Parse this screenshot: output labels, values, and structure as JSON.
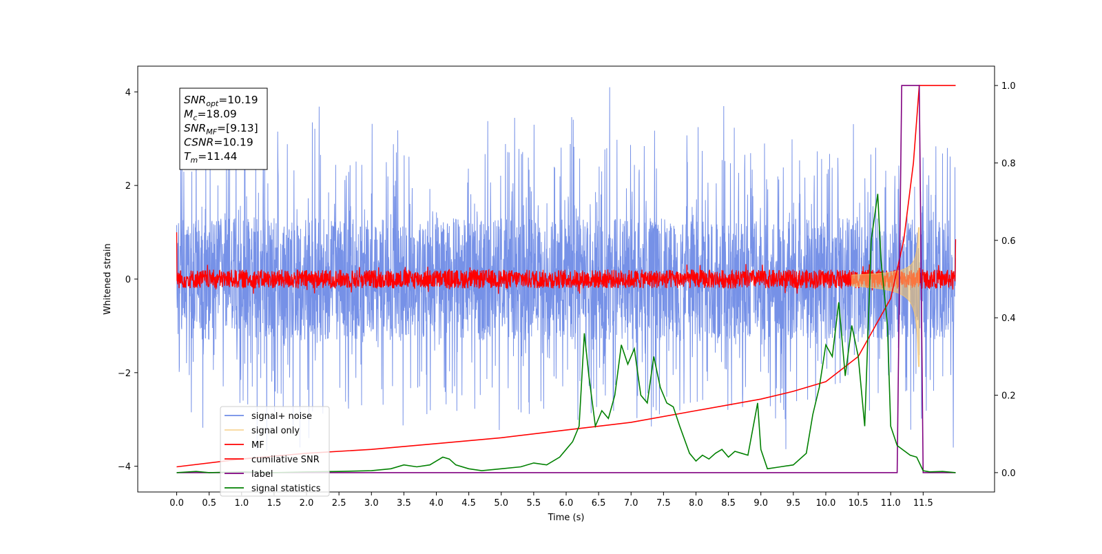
{
  "chart_data": {
    "type": "line",
    "xlabel": "Time (s)",
    "ylabel": "Whitened strain",
    "xlim": [
      -0.6,
      12.6
    ],
    "ylim": [
      -4.55,
      4.55
    ],
    "y2lim": [
      -0.05,
      1.05
    ],
    "x_ticks": [
      "0.0",
      "0.5",
      "1.0",
      "1.5",
      "2.0",
      "2.5",
      "3.0",
      "3.5",
      "4.0",
      "4.5",
      "5.0",
      "5.5",
      "6.0",
      "6.5",
      "7.0",
      "7.5",
      "8.0",
      "8.5",
      "9.0",
      "9.5",
      "10.0",
      "10.5",
      "11.0",
      "11.5"
    ],
    "y_ticks": [
      "4",
      "2",
      "0",
      "−2",
      "−4"
    ],
    "y2_ticks": [
      "1.0",
      "0.8",
      "0.6",
      "0.4",
      "0.2",
      "0.0"
    ],
    "grid": false,
    "legend_position": "lower-left",
    "stats_box": {
      "lines": [
        {
          "main": "SNR",
          "sub": "opt",
          "value": "=10.19"
        },
        {
          "main": "M",
          "sub": "c",
          "value": "=18.09"
        },
        {
          "main": "SNR",
          "sub": "MF",
          "value": "=[9.13]"
        },
        {
          "main": "CSNR",
          "sub": "",
          "value": "=10.19"
        },
        {
          "main": "T",
          "sub": "m",
          "value": "=11.44"
        }
      ]
    },
    "series": [
      {
        "name": "signal+ noise",
        "color": "#6f8be6",
        "axis": "left",
        "kind": "noise",
        "x_range": [
          0,
          12
        ],
        "upper_envelope": 1.3,
        "lower_envelope": -1.3,
        "max_peak": 4.1,
        "min_peak": -3.6
      },
      {
        "name": "signal only",
        "color": "#f5c46b",
        "axis": "left",
        "kind": "chirp",
        "x_range": [
          10.4,
          11.44
        ],
        "max_amplitude": 1.1
      },
      {
        "name": "MF",
        "color": "#ff0000",
        "axis": "left",
        "kind": "matched-filter",
        "x_range": [
          0,
          12
        ],
        "baseline_amplitude": 0.2,
        "start_value": 1.0,
        "end_value": 0.85
      },
      {
        "name": "cumilative SNR",
        "color": "#ff0000",
        "axis": "right",
        "x": [
          0.0,
          1.0,
          2.0,
          3.0,
          4.0,
          5.0,
          6.0,
          7.0,
          8.0,
          9.0,
          9.5,
          10.0,
          10.5,
          11.0,
          11.2,
          11.35,
          11.44,
          12.0
        ],
        "y": [
          0.015,
          0.035,
          0.05,
          0.06,
          0.075,
          0.09,
          0.11,
          0.13,
          0.16,
          0.19,
          0.21,
          0.235,
          0.3,
          0.45,
          0.6,
          0.8,
          1.0,
          1.0
        ]
      },
      {
        "name": "label",
        "color": "#800080",
        "axis": "right",
        "x": [
          0.0,
          11.1,
          11.17,
          11.44,
          11.5,
          12.0
        ],
        "y": [
          0.0,
          0.0,
          1.0,
          1.0,
          0.0,
          0.0
        ]
      },
      {
        "name": "signal statistics",
        "color": "#008000",
        "axis": "right",
        "x": [
          0.0,
          0.3,
          0.5,
          1.0,
          1.5,
          2.0,
          2.5,
          3.0,
          3.3,
          3.5,
          3.7,
          3.9,
          4.1,
          4.2,
          4.3,
          4.5,
          4.7,
          5.0,
          5.3,
          5.5,
          5.7,
          5.9,
          6.0,
          6.1,
          6.2,
          6.28,
          6.35,
          6.45,
          6.55,
          6.65,
          6.75,
          6.85,
          6.95,
          7.05,
          7.15,
          7.25,
          7.35,
          7.45,
          7.55,
          7.65,
          7.75,
          7.9,
          8.0,
          8.1,
          8.2,
          8.3,
          8.4,
          8.5,
          8.6,
          8.7,
          8.8,
          8.95,
          9.0,
          9.1,
          9.3,
          9.5,
          9.7,
          9.8,
          9.9,
          10.0,
          10.1,
          10.2,
          10.3,
          10.4,
          10.5,
          10.6,
          10.7,
          10.8,
          10.85,
          10.95,
          11.0,
          11.1,
          11.3,
          11.4,
          11.5,
          11.6,
          11.8,
          12.0
        ],
        "y": [
          0.0,
          0.003,
          0.0,
          0.002,
          0.0,
          0.002,
          0.003,
          0.005,
          0.01,
          0.02,
          0.015,
          0.02,
          0.04,
          0.035,
          0.02,
          0.01,
          0.005,
          0.01,
          0.015,
          0.025,
          0.02,
          0.04,
          0.06,
          0.08,
          0.12,
          0.36,
          0.25,
          0.12,
          0.16,
          0.14,
          0.2,
          0.33,
          0.28,
          0.32,
          0.2,
          0.18,
          0.3,
          0.22,
          0.18,
          0.17,
          0.12,
          0.05,
          0.03,
          0.045,
          0.035,
          0.05,
          0.06,
          0.04,
          0.055,
          0.05,
          0.045,
          0.18,
          0.06,
          0.01,
          0.015,
          0.02,
          0.05,
          0.15,
          0.22,
          0.33,
          0.3,
          0.44,
          0.25,
          0.38,
          0.3,
          0.12,
          0.6,
          0.72,
          0.55,
          0.38,
          0.12,
          0.07,
          0.045,
          0.04,
          0.005,
          0.002,
          0.003,
          0.0
        ]
      }
    ]
  }
}
